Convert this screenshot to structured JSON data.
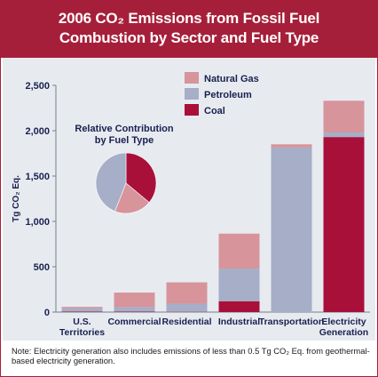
{
  "title": {
    "line1": "2006 CO₂ Emissions from Fossil Fuel",
    "line2": "Combustion by Sector and Fuel Type"
  },
  "note": "Note: Electricity generation also includes emissions of less than 0.5 Tg CO₂ Eq. from geothermal-based electricity generation.",
  "colors": {
    "header": "#a61f3a",
    "Natural Gas": "#d7949a",
    "Petroleum": "#a6aec8",
    "Coal": "#a8103a",
    "background": "#e7ebf0"
  },
  "chart_data": [
    {
      "type": "bar",
      "stacked": true,
      "categories": [
        "U.S.\nTerritories",
        "Commercial",
        "Residential",
        "Industrial",
        "Transportation",
        "Electricity\nGeneration"
      ],
      "series": [
        {
          "name": "Coal",
          "values": [
            5,
            5,
            3,
            120,
            0,
            1930
          ]
        },
        {
          "name": "Petroleum",
          "values": [
            38,
            50,
            90,
            360,
            1815,
            50
          ]
        },
        {
          "name": "Natural Gas",
          "values": [
            15,
            160,
            235,
            385,
            35,
            350
          ]
        }
      ],
      "ylabel": "Tg CO₂ Eq.",
      "ylim": [
        0,
        2500
      ],
      "yticks": [
        "0",
        "500",
        "1,000",
        "1,500",
        "2,000",
        "2,500"
      ],
      "ytick_values": [
        0,
        500,
        1000,
        1500,
        2000,
        2500
      ],
      "legend": [
        "Natural Gas",
        "Petroleum",
        "Coal"
      ],
      "legend_position": "top-right",
      "grid": false
    },
    {
      "type": "pie",
      "title": "Relative Contribution\nby Fuel Type",
      "labels": [
        "Coal",
        "Natural Gas",
        "Petroleum"
      ],
      "values": [
        36,
        20,
        44
      ]
    }
  ]
}
